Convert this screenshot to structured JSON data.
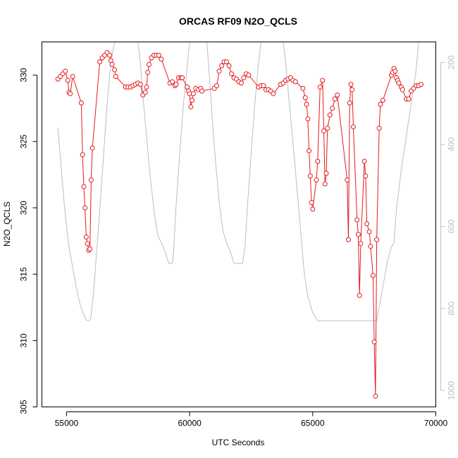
{
  "chart_data": {
    "type": "line",
    "title": "ORCAS RF09 N2O_QCLS",
    "xlabel": "UTC Seconds",
    "ylabel": "N2O_QCLS",
    "xlim": [
      54000,
      70000
    ],
    "ylim": [
      305,
      332.5
    ],
    "x_ticks": [
      55000,
      60000,
      65000,
      70000
    ],
    "y_ticks": [
      305,
      310,
      315,
      320,
      325,
      330
    ],
    "y2lim": [
      1040,
      150
    ],
    "y2_ticks": [
      200,
      400,
      600,
      800,
      1000
    ],
    "grid": false,
    "series": [
      {
        "color": "#e31a1c",
        "style": "points-and-lines",
        "points": [
          [
            54650,
            329.7
          ],
          [
            54750,
            329.9
          ],
          [
            54850,
            330.1
          ],
          [
            54950,
            330.3
          ],
          [
            55050,
            329.6
          ],
          [
            55100,
            328.7
          ],
          [
            55150,
            328.6
          ],
          [
            55250,
            329.9
          ],
          [
            55600,
            327.9
          ],
          [
            55650,
            324.0
          ],
          [
            55700,
            321.6
          ],
          [
            55750,
            320.0
          ],
          [
            55800,
            317.8
          ],
          [
            55850,
            317.3
          ],
          [
            55900,
            316.8
          ],
          [
            55950,
            316.9
          ],
          [
            56000,
            322.1
          ],
          [
            56050,
            324.5
          ],
          [
            56350,
            331.0
          ],
          [
            56450,
            331.3
          ],
          [
            56550,
            331.5
          ],
          [
            56650,
            331.7
          ],
          [
            56750,
            331.5
          ],
          [
            56800,
            331.1
          ],
          [
            56850,
            330.8
          ],
          [
            56950,
            330.4
          ],
          [
            57000,
            329.9
          ],
          [
            57400,
            329.1
          ],
          [
            57500,
            329.1
          ],
          [
            57600,
            329.1
          ],
          [
            57700,
            329.2
          ],
          [
            57800,
            329.3
          ],
          [
            57900,
            329.4
          ],
          [
            58000,
            329.3
          ],
          [
            58100,
            328.5
          ],
          [
            58200,
            328.7
          ],
          [
            58250,
            329.1
          ],
          [
            58300,
            330.2
          ],
          [
            58350,
            330.8
          ],
          [
            58450,
            331.3
          ],
          [
            58550,
            331.5
          ],
          [
            58650,
            331.5
          ],
          [
            58750,
            331.5
          ],
          [
            58850,
            331.2
          ],
          [
            59200,
            329.4
          ],
          [
            59300,
            329.5
          ],
          [
            59400,
            329.2
          ],
          [
            59450,
            329.3
          ],
          [
            59550,
            329.8
          ],
          [
            59650,
            329.8
          ],
          [
            59700,
            329.8
          ],
          [
            59900,
            329.1
          ],
          [
            59950,
            328.8
          ],
          [
            60000,
            328.6
          ],
          [
            60050,
            327.6
          ],
          [
            60100,
            328.1
          ],
          [
            60150,
            328.6
          ],
          [
            60250,
            329.0
          ],
          [
            60350,
            328.9
          ],
          [
            60450,
            329.0
          ],
          [
            60500,
            328.8
          ],
          [
            61000,
            329.0
          ],
          [
            61100,
            329.2
          ],
          [
            61200,
            330.3
          ],
          [
            61300,
            330.7
          ],
          [
            61400,
            331.0
          ],
          [
            61500,
            331.0
          ],
          [
            61600,
            330.7
          ],
          [
            61700,
            330.1
          ],
          [
            61800,
            329.8
          ],
          [
            61900,
            329.7
          ],
          [
            62000,
            329.5
          ],
          [
            62100,
            329.4
          ],
          [
            62200,
            329.8
          ],
          [
            62300,
            330.1
          ],
          [
            62400,
            330.0
          ],
          [
            62800,
            329.1
          ],
          [
            62900,
            329.2
          ],
          [
            63000,
            329.2
          ],
          [
            63100,
            328.9
          ],
          [
            63200,
            328.9
          ],
          [
            63300,
            328.8
          ],
          [
            63400,
            328.6
          ],
          [
            63700,
            329.3
          ],
          [
            63800,
            329.4
          ],
          [
            63900,
            329.6
          ],
          [
            64000,
            329.7
          ],
          [
            64100,
            329.8
          ],
          [
            64200,
            329.6
          ],
          [
            64300,
            329.5
          ],
          [
            64600,
            329.0
          ],
          [
            64700,
            328.3
          ],
          [
            64750,
            327.8
          ],
          [
            64800,
            326.7
          ],
          [
            64850,
            324.3
          ],
          [
            64900,
            322.4
          ],
          [
            64950,
            320.4
          ],
          [
            65000,
            319.9
          ],
          [
            65150,
            322.1
          ],
          [
            65200,
            323.5
          ],
          [
            65300,
            329.1
          ],
          [
            65400,
            329.6
          ],
          [
            65450,
            325.8
          ],
          [
            65500,
            321.8
          ],
          [
            65550,
            322.6
          ],
          [
            65600,
            326.0
          ],
          [
            65700,
            327.0
          ],
          [
            65800,
            327.5
          ],
          [
            65900,
            328.2
          ],
          [
            66000,
            328.5
          ],
          [
            66400,
            322.1
          ],
          [
            66450,
            317.6
          ],
          [
            66500,
            327.9
          ],
          [
            66550,
            329.3
          ],
          [
            66600,
            328.9
          ],
          [
            66650,
            326.1
          ],
          [
            66800,
            319.1
          ],
          [
            66850,
            318.0
          ],
          [
            66900,
            313.4
          ],
          [
            66950,
            317.3
          ],
          [
            67100,
            323.5
          ],
          [
            67150,
            322.4
          ],
          [
            67200,
            318.8
          ],
          [
            67300,
            318.2
          ],
          [
            67350,
            317.1
          ],
          [
            67450,
            314.9
          ],
          [
            67500,
            309.9
          ],
          [
            67550,
            305.8
          ],
          [
            67600,
            317.6
          ],
          [
            67700,
            326.0
          ],
          [
            67750,
            327.8
          ],
          [
            67850,
            328.1
          ],
          [
            68200,
            330.0
          ],
          [
            68250,
            330.2
          ],
          [
            68300,
            330.5
          ],
          [
            68350,
            330.3
          ],
          [
            68400,
            329.8
          ],
          [
            68450,
            329.6
          ],
          [
            68500,
            329.4
          ],
          [
            68600,
            329.1
          ],
          [
            68650,
            328.9
          ],
          [
            68800,
            328.2
          ],
          [
            68900,
            328.2
          ],
          [
            69000,
            328.8
          ],
          [
            69100,
            329.0
          ],
          [
            69200,
            329.2
          ],
          [
            69300,
            329.2
          ],
          [
            69400,
            329.3
          ]
        ]
      },
      {
        "color": "#bebebe",
        "axis": "right",
        "style": "line",
        "points": [
          [
            54650,
            360
          ],
          [
            54800,
            470
          ],
          [
            54900,
            540
          ],
          [
            55000,
            600
          ],
          [
            55100,
            650
          ],
          [
            55250,
            700
          ],
          [
            55400,
            750
          ],
          [
            55550,
            790
          ],
          [
            55700,
            815
          ],
          [
            55800,
            828
          ],
          [
            55900,
            830
          ],
          [
            55950,
            828
          ],
          [
            56000,
            815
          ],
          [
            56100,
            760
          ],
          [
            56200,
            680
          ],
          [
            56350,
            560
          ],
          [
            56500,
            430
          ],
          [
            56650,
            300
          ],
          [
            56800,
            200
          ],
          [
            56950,
            150
          ],
          [
            57000,
            150
          ],
          [
            57900,
            150
          ],
          [
            58000,
            200
          ],
          [
            58100,
            280
          ],
          [
            58250,
            380
          ],
          [
            58400,
            480
          ],
          [
            58550,
            560
          ],
          [
            58700,
            620
          ],
          [
            58850,
            640
          ],
          [
            59000,
            660
          ],
          [
            59150,
            690
          ],
          [
            59250,
            690
          ],
          [
            59300,
            690
          ],
          [
            59350,
            660
          ],
          [
            59450,
            550
          ],
          [
            59600,
            420
          ],
          [
            59750,
            300
          ],
          [
            59900,
            210
          ],
          [
            60000,
            150
          ],
          [
            60500,
            150
          ],
          [
            60700,
            150
          ],
          [
            60800,
            230
          ],
          [
            60900,
            320
          ],
          [
            61050,
            440
          ],
          [
            61200,
            540
          ],
          [
            61350,
            610
          ],
          [
            61500,
            640
          ],
          [
            61650,
            660
          ],
          [
            61800,
            690
          ],
          [
            62000,
            690
          ],
          [
            62150,
            690
          ],
          [
            62250,
            650
          ],
          [
            62350,
            550
          ],
          [
            62500,
            420
          ],
          [
            62650,
            300
          ],
          [
            62800,
            200
          ],
          [
            62900,
            150
          ],
          [
            63800,
            150
          ],
          [
            63900,
            200
          ],
          [
            64050,
            300
          ],
          [
            64250,
            430
          ],
          [
            64450,
            570
          ],
          [
            64650,
            710
          ],
          [
            64800,
            770
          ],
          [
            65000,
            810
          ],
          [
            65200,
            830
          ],
          [
            65300,
            830
          ],
          [
            67600,
            830
          ],
          [
            67750,
            780
          ],
          [
            67900,
            730
          ],
          [
            68050,
            680
          ],
          [
            68200,
            650
          ],
          [
            68300,
            640
          ],
          [
            68400,
            560
          ],
          [
            68600,
            460
          ],
          [
            68800,
            380
          ],
          [
            69000,
            300
          ],
          [
            69200,
            220
          ],
          [
            69300,
            150
          ]
        ]
      }
    ]
  }
}
